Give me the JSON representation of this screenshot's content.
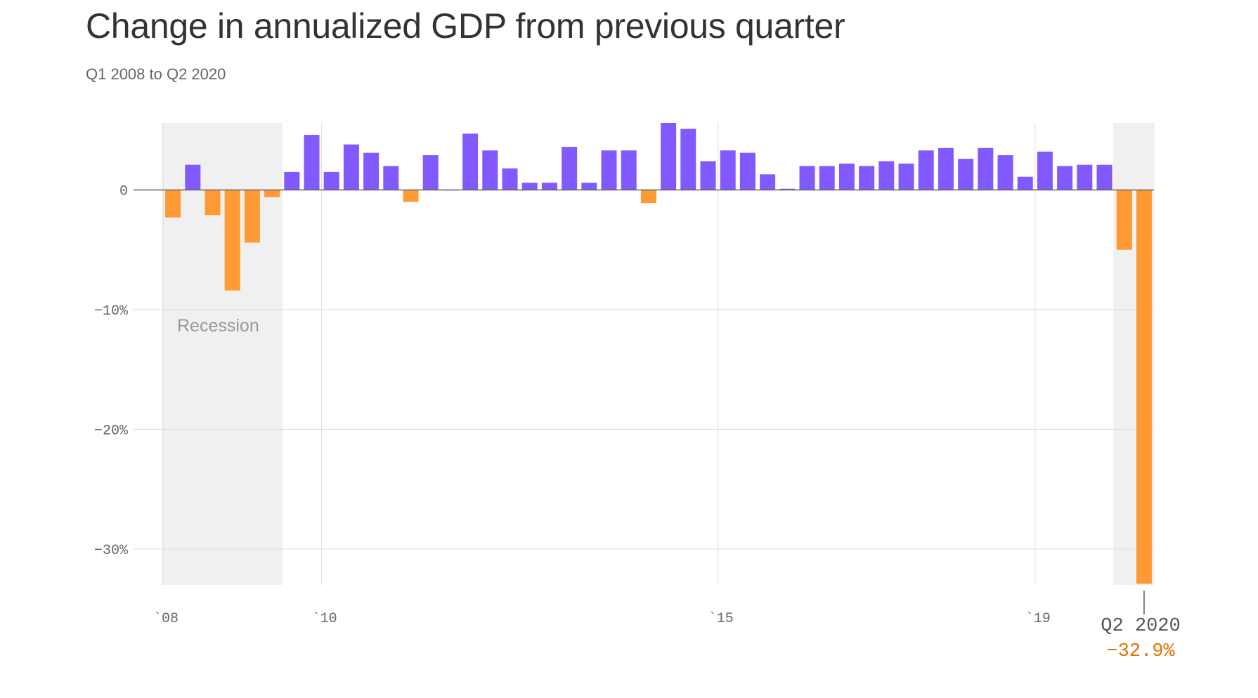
{
  "title": "Change in annualized GDP from previous quarter",
  "subtitle": "Q1 2008 to Q2 2020",
  "colors": {
    "positive": "#8259ff",
    "negative": "#ff9933",
    "recession": "#f0f0f0",
    "grid": "#dddddd",
    "callout_value": "#e07400"
  },
  "recession_label": "Recession",
  "callout": {
    "label": "Q2 2020",
    "value": "−32.9%"
  },
  "chart_data": {
    "type": "bar",
    "x_start": "Q1 2008",
    "x_end": "Q2 2020",
    "ylim": [
      -33,
      5.6
    ],
    "y_ticks": [
      {
        "value": 0,
        "label": "0"
      },
      {
        "value": -10,
        "label": "−10%"
      },
      {
        "value": -20,
        "label": "−20%"
      },
      {
        "value": -30,
        "label": "−30%"
      }
    ],
    "x_ticks": [
      {
        "label": "`08",
        "index": 0
      },
      {
        "label": "`10",
        "index": 8
      },
      {
        "label": "`15",
        "index": 28
      },
      {
        "label": "`19",
        "index": 44
      }
    ],
    "recessions": [
      {
        "start_index": 0,
        "end_index": 5
      },
      {
        "start_index": 48,
        "end_index": 49
      }
    ],
    "values": [
      -2.3,
      2.1,
      -2.1,
      -8.4,
      -4.4,
      -0.6,
      1.5,
      4.6,
      1.5,
      3.8,
      3.1,
      2.0,
      -1.0,
      2.9,
      0,
      4.7,
      3.3,
      1.8,
      0.6,
      0.6,
      3.6,
      0.6,
      3.3,
      3.3,
      -1.1,
      5.6,
      5.1,
      2.4,
      3.3,
      3.1,
      1.3,
      0.1,
      2.0,
      2.0,
      2.2,
      2.0,
      2.4,
      2.2,
      3.3,
      3.5,
      2.6,
      3.5,
      2.9,
      1.1,
      3.2,
      2.0,
      2.1,
      2.1,
      -5.0,
      -32.9
    ]
  }
}
